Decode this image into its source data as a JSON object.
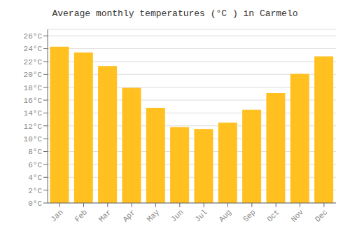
{
  "chart_data": {
    "type": "bar",
    "title": "Average monthly temperatures (°C ) in Carmelo",
    "categories": [
      "Jan",
      "Feb",
      "Mar",
      "Apr",
      "May",
      "Jun",
      "Jul",
      "Aug",
      "Sep",
      "Oct",
      "Nov",
      "Dec"
    ],
    "values": [
      24.3,
      23.4,
      21.3,
      17.9,
      14.8,
      11.8,
      11.5,
      12.5,
      14.5,
      17.1,
      20.1,
      22.8
    ],
    "color": "#FFC020",
    "ylim": [
      0,
      27
    ],
    "yticks": [
      {
        "value": 0,
        "label": "0°C"
      },
      {
        "value": 2,
        "label": "2°C"
      },
      {
        "value": 4,
        "label": "4°C"
      },
      {
        "value": 6,
        "label": "6°C"
      },
      {
        "value": 8,
        "label": "8°C"
      },
      {
        "value": 10,
        "label": "10°C"
      },
      {
        "value": 12,
        "label": "12°C"
      },
      {
        "value": 14,
        "label": "14°C"
      },
      {
        "value": 16,
        "label": "16°C"
      },
      {
        "value": 18,
        "label": "18°C"
      },
      {
        "value": 20,
        "label": "20°C"
      },
      {
        "value": 22,
        "label": "22°C"
      },
      {
        "value": 24,
        "label": "24°C"
      },
      {
        "value": 26,
        "label": "26°C"
      }
    ],
    "grid": true
  }
}
